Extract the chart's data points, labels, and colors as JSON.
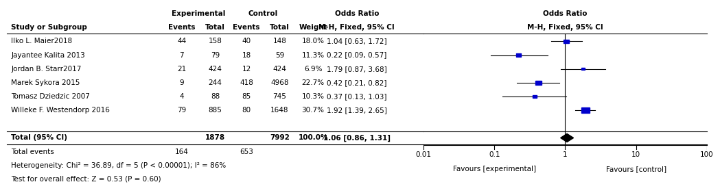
{
  "studies": [
    {
      "name": "Ilko L. Maier2018",
      "exp_events": 44,
      "exp_total": 158,
      "ctrl_events": 40,
      "ctrl_total": 148,
      "weight": "18.0%",
      "or": 1.04,
      "ci_low": 0.63,
      "ci_high": 1.72
    },
    {
      "name": "Jayantee Kalita 2013",
      "exp_events": 7,
      "exp_total": 79,
      "ctrl_events": 18,
      "ctrl_total": 59,
      "weight": "11.3%",
      "or": 0.22,
      "ci_low": 0.09,
      "ci_high": 0.57
    },
    {
      "name": "Jordan B. Starr2017",
      "exp_events": 21,
      "exp_total": 424,
      "ctrl_events": 12,
      "ctrl_total": 424,
      "weight": "6.9%",
      "or": 1.79,
      "ci_low": 0.87,
      "ci_high": 3.68
    },
    {
      "name": "Marek Sykora 2015",
      "exp_events": 9,
      "exp_total": 244,
      "ctrl_events": 418,
      "ctrl_total": 4968,
      "weight": "22.7%",
      "or": 0.42,
      "ci_low": 0.21,
      "ci_high": 0.82
    },
    {
      "name": "Tomasz Dziedzic 2007",
      "exp_events": 4,
      "exp_total": 88,
      "ctrl_events": 85,
      "ctrl_total": 745,
      "weight": "10.3%",
      "or": 0.37,
      "ci_low": 0.13,
      "ci_high": 1.03
    },
    {
      "name": "Willeke F. Westendorp 2016",
      "exp_events": 79,
      "exp_total": 885,
      "ctrl_events": 80,
      "ctrl_total": 1648,
      "weight": "30.7%",
      "or": 1.92,
      "ci_low": 1.39,
      "ci_high": 2.65
    }
  ],
  "total": {
    "exp_total": 1878,
    "ctrl_total": 7992,
    "weight": "100.0%",
    "or": 1.06,
    "ci_low": 0.86,
    "ci_high": 1.31,
    "exp_events": 164,
    "ctrl_events": 653
  },
  "heterogeneity_text": "Heterogeneity: Chi² = 36.89, df = 5 (P < 0.00001); I² = 86%",
  "overall_effect_text": "Test for overall effect: Z = 0.53 (P = 0.60)",
  "plot_title": "Odds Ratio",
  "plot_subtitle": "M-H, Fixed, 95% CI",
  "x_label_left": "Favours [experimental]",
  "x_label_right": "Favours [control]",
  "x_ticks": [
    0.01,
    0.1,
    1,
    10,
    100
  ],
  "log_min": -2.0,
  "log_max": 2.0,
  "square_color": "#0000CC",
  "diamond_color": "#000000",
  "background_color": "#ffffff"
}
